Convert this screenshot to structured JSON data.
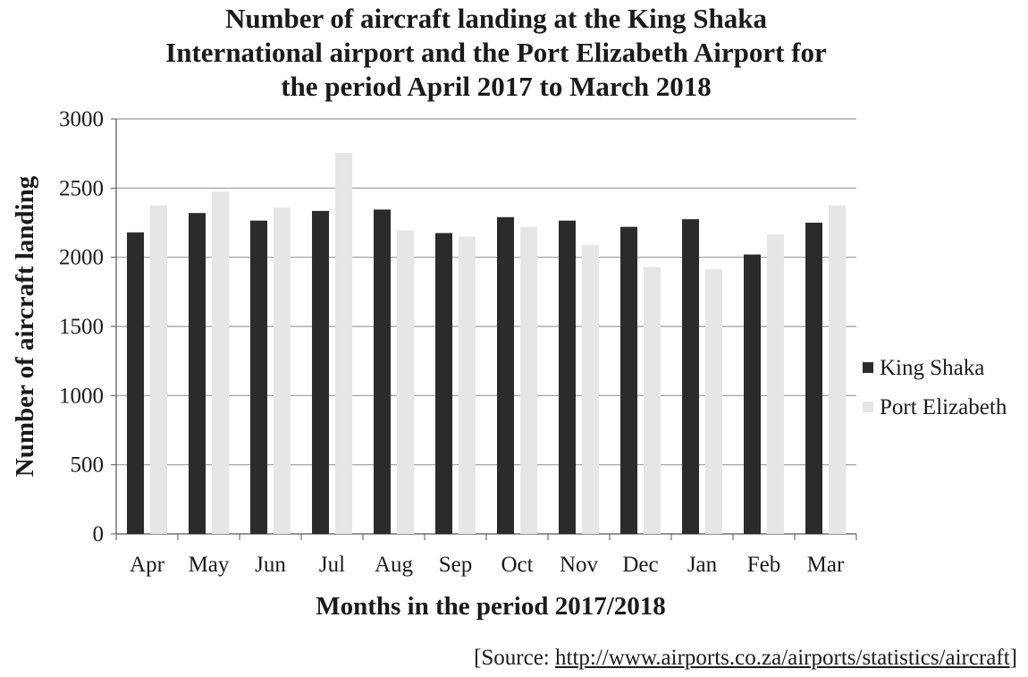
{
  "chart_data": {
    "type": "bar",
    "title": "Number of aircraft landing at the King Shaka International airport and the Port Elizabeth Airport for the period April 2017 to March 2018",
    "title_lines": [
      "Number of aircraft landing at the King Shaka",
      "International airport and the Port Elizabeth Airport for",
      "the period April 2017 to March 2018"
    ],
    "xlabel": "Months in the period 2017/2018",
    "ylabel": "Number of aircraft landing",
    "ylim": [
      0,
      3000
    ],
    "yticks": [
      0,
      500,
      1000,
      1500,
      2000,
      2500,
      3000
    ],
    "grid": true,
    "legend_position": "right",
    "categories": [
      "Apr",
      "May",
      "Jun",
      "Jul",
      "Aug",
      "Sep",
      "Oct",
      "Nov",
      "Dec",
      "Jan",
      "Feb",
      "Mar"
    ],
    "series": [
      {
        "name": "King Shaka",
        "color": "#2b2b2b",
        "values": [
          2180,
          2320,
          2265,
          2335,
          2345,
          2175,
          2290,
          2265,
          2220,
          2275,
          2020,
          2250
        ]
      },
      {
        "name": "Port Elizabeth",
        "color": "#e6e6e6",
        "values": [
          2375,
          2475,
          2360,
          2755,
          2195,
          2150,
          2220,
          2090,
          1930,
          1915,
          2165,
          2375
        ]
      }
    ]
  },
  "source": {
    "prefix": "[Source: ",
    "url": "http://www.airports.co.za/airports/statistics/aircraft",
    "suffix": "]"
  }
}
